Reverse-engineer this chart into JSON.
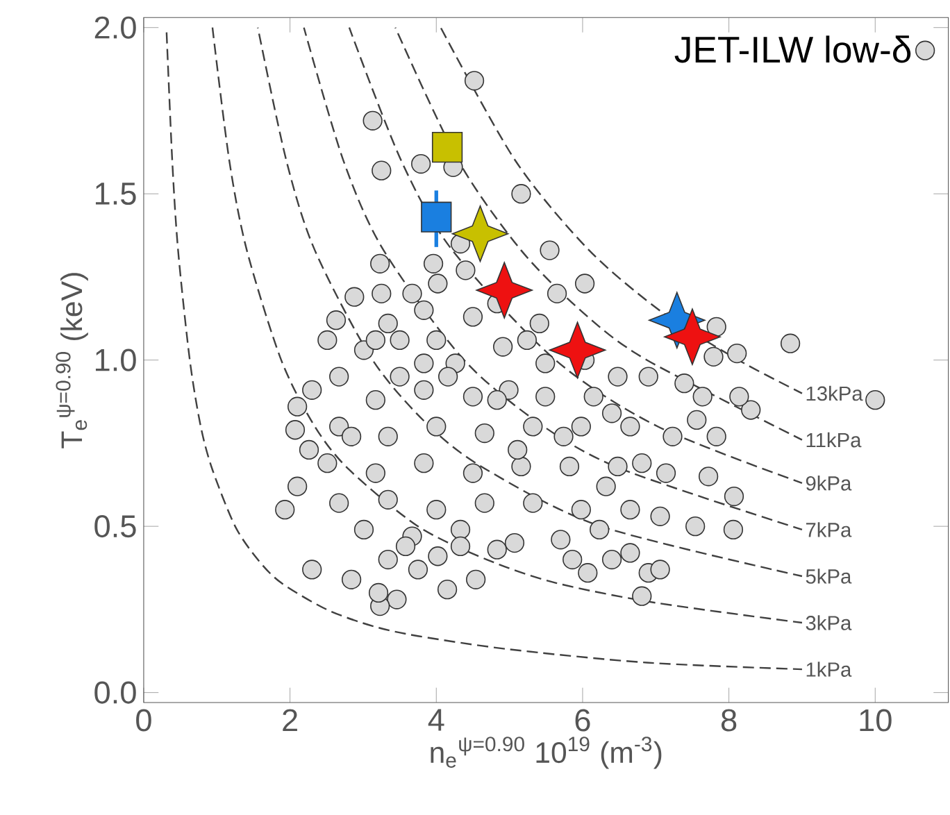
{
  "chart_data": {
    "type": "scatter",
    "xlabel": "n$_{e}$$^{ψ=0.90}$  10$^{19}$  (m$^{-3}$)",
    "ylabel": "T$_{e}$$^{ψ=0.90}$  (keV)",
    "xlim": [
      0,
      11
    ],
    "ylim": [
      -0.03,
      2.03
    ],
    "xticks": [
      0,
      2,
      4,
      6,
      8,
      10
    ],
    "yticks": [
      {
        "value": 0,
        "label": "0.0"
      },
      {
        "value": 0.5,
        "label": "0.5"
      },
      {
        "value": 1.0,
        "label": "1.0"
      },
      {
        "value": 1.5,
        "label": "1.5"
      },
      {
        "value": 2.0,
        "label": "2.0"
      }
    ],
    "legend": "top right",
    "series": [
      {
        "type": "line",
        "name": "13kPa",
        "color": "#404040",
        "line_style": "dashed",
        "marker": "none",
        "x": [
          4.06,
          5.08,
          6.09,
          7.11,
          8.13,
          9.0
        ],
        "values": [
          2.0,
          1.6,
          1.33,
          1.14,
          1.0,
          0.9
        ]
      },
      {
        "type": "line",
        "name": "11kPa",
        "color": "#404040",
        "line_style": "dashed",
        "marker": "none",
        "x": [
          3.44,
          4.3,
          5.16,
          6.02,
          6.88,
          9.0
        ],
        "values": [
          2.0,
          1.6,
          1.33,
          1.14,
          1.0,
          0.76
        ]
      },
      {
        "type": "line",
        "name": "9kPa",
        "color": "#404040",
        "line_style": "dashed",
        "marker": "none",
        "x": [
          2.81,
          3.52,
          4.22,
          5.63,
          7.03,
          9.0
        ],
        "values": [
          2.0,
          1.6,
          1.33,
          1.0,
          0.8,
          0.63
        ]
      },
      {
        "type": "line",
        "name": "7kPa",
        "color": "#404040",
        "line_style": "dashed",
        "marker": "none",
        "x": [
          2.19,
          2.73,
          3.28,
          4.38,
          5.47,
          6.56,
          9.0
        ],
        "values": [
          2.0,
          1.6,
          1.33,
          1.0,
          0.8,
          0.67,
          0.49
        ]
      },
      {
        "type": "line",
        "name": "5kPa",
        "color": "#404040",
        "line_style": "dashed",
        "marker": "none",
        "x": [
          1.56,
          1.95,
          2.34,
          3.13,
          3.91,
          4.69,
          6.25,
          9.0
        ],
        "values": [
          2.0,
          1.6,
          1.33,
          1.0,
          0.8,
          0.67,
          0.5,
          0.35
        ]
      },
      {
        "type": "line",
        "name": "3kPa",
        "color": "#404040",
        "line_style": "dashed",
        "marker": "none",
        "x": [
          0.94,
          1.17,
          1.41,
          1.88,
          2.34,
          2.81,
          3.75,
          4.69,
          5.63,
          7.0,
          9.0
        ],
        "values": [
          2.0,
          1.6,
          1.33,
          1.0,
          0.8,
          0.67,
          0.5,
          0.4,
          0.33,
          0.27,
          0.21
        ]
      },
      {
        "type": "line",
        "name": "1kPa",
        "color": "#404040",
        "line_style": "dashed",
        "marker": "none",
        "x": [
          0.31,
          0.39,
          0.47,
          0.63,
          0.78,
          0.94,
          1.25,
          1.56,
          1.88,
          2.5,
          3.13,
          3.75,
          5.0,
          6.88,
          9.0
        ],
        "values": [
          2.0,
          1.6,
          1.33,
          1.0,
          0.8,
          0.67,
          0.5,
          0.4,
          0.33,
          0.25,
          0.2,
          0.17,
          0.13,
          0.09,
          0.07
        ]
      },
      {
        "name": "JET-ILW low-δ",
        "color": "#d9d9d9",
        "marker": "circle",
        "x": [
          4.52,
          3.13,
          3.25,
          3.79,
          4.23,
          5.16,
          5.55,
          3.23,
          4.33,
          3.96,
          4.4,
          6.03,
          5.65,
          4.02,
          3.25,
          2.88,
          3.67,
          2.63,
          8.84,
          7.83,
          8.11,
          7.79,
          10.0,
          8.3,
          8.14,
          7.83,
          7.72,
          8.07,
          8.06,
          7.54,
          6.9,
          7.06,
          6.81,
          6.65,
          6.4,
          6.07,
          5.86,
          5.7,
          5.07,
          4.83,
          4.54,
          4.15,
          4.02,
          3.75,
          3.46,
          3.23,
          3.21,
          2.84,
          2.3,
          1.93,
          2.1,
          2.07,
          2.1,
          2.3,
          2.51,
          3.01,
          3.34,
          3.83,
          4.5,
          4.83,
          5.41,
          6.9,
          7.39,
          6.48,
          6.15,
          2.67,
          3.17,
          3.83,
          4.26,
          4.99,
          5.49,
          2.67,
          3.34,
          4.0,
          4.66,
          5.32,
          5.98,
          6.65,
          7.23,
          2.51,
          3.17,
          3.83,
          4.5,
          5.16,
          5.82,
          6.48,
          7.14,
          2.67,
          3.34,
          4.0,
          4.66,
          5.32,
          5.98,
          6.65,
          7.06,
          3.01,
          3.67,
          4.33,
          6.23,
          3.34,
          3.58,
          4.33,
          6.32,
          3.5,
          4.0,
          4.16,
          4.91,
          5.24,
          6.03,
          6.4,
          7.56,
          7.64,
          2.26,
          2.84,
          3.5,
          4.83,
          5.49,
          5.74,
          5.11,
          6.81,
          3.83,
          4.5,
          3.17
        ],
        "values": [
          1.84,
          1.72,
          1.57,
          1.59,
          1.58,
          1.5,
          1.33,
          1.29,
          1.35,
          1.29,
          1.27,
          1.23,
          1.2,
          1.23,
          1.2,
          1.19,
          1.2,
          1.12,
          1.05,
          1.1,
          1.02,
          1.01,
          0.88,
          0.85,
          0.89,
          0.77,
          0.65,
          0.59,
          0.49,
          0.5,
          0.36,
          0.37,
          0.29,
          0.42,
          0.4,
          0.36,
          0.4,
          0.46,
          0.45,
          0.43,
          0.34,
          0.31,
          0.41,
          0.37,
          0.28,
          0.26,
          0.3,
          0.34,
          0.37,
          0.55,
          0.62,
          0.79,
          0.86,
          0.91,
          1.06,
          1.03,
          1.11,
          1.15,
          1.13,
          1.17,
          1.11,
          0.95,
          0.93,
          0.95,
          0.89,
          0.95,
          0.88,
          0.91,
          0.99,
          0.91,
          0.99,
          0.8,
          0.77,
          0.8,
          0.78,
          0.8,
          0.8,
          0.8,
          0.77,
          0.69,
          0.66,
          0.69,
          0.66,
          0.68,
          0.68,
          0.68,
          0.66,
          0.57,
          0.58,
          0.55,
          0.57,
          0.57,
          0.55,
          0.55,
          0.53,
          0.49,
          0.47,
          0.49,
          0.49,
          0.4,
          0.44,
          0.44,
          0.62,
          1.06,
          1.06,
          0.95,
          1.04,
          1.06,
          1.0,
          0.84,
          0.82,
          0.89,
          0.73,
          0.77,
          0.95,
          0.88,
          0.89,
          0.77,
          0.73,
          0.69,
          0.99,
          0.89,
          1.06
        ]
      },
      {
        "color": "#c8c000",
        "marker": "square",
        "x": [
          4.15
        ],
        "values": [
          1.64
        ]
      },
      {
        "color": "#1a7fe0",
        "marker": "square",
        "x": [
          4.0
        ],
        "values": [
          1.43
        ],
        "errors": [
          [
            1.34,
            1.51
          ]
        ]
      },
      {
        "color": "#c8c000",
        "marker": "star",
        "x": [
          4.6
        ],
        "values": [
          1.38
        ]
      },
      {
        "color": "#1a7fe0",
        "marker": "star",
        "x": [
          7.29
        ],
        "values": [
          1.12
        ]
      },
      {
        "color": "#ee1111",
        "marker": "star",
        "x": [
          4.93,
          5.93,
          7.5
        ],
        "values": [
          1.21,
          1.03,
          1.07
        ]
      }
    ]
  }
}
